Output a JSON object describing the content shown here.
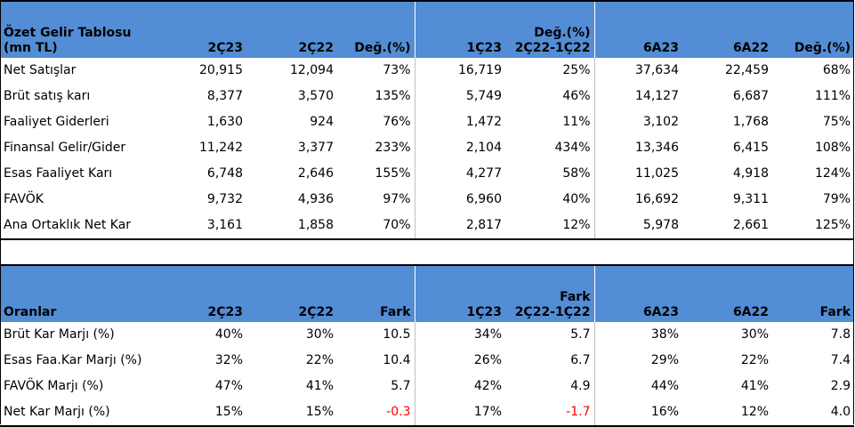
{
  "income": {
    "headers": [
      "Özet Gelir Tablosu\n(mn TL)",
      "2Ç23",
      "2Ç22",
      "Değ.(%)",
      "1Ç23",
      "Değ.(%)\n2Ç22-1Ç22",
      "6A23",
      "6A22",
      "Değ.(%)"
    ],
    "rows": [
      [
        "Net Satışlar",
        "20,915",
        "12,094",
        "73%",
        "16,719",
        "25%",
        "37,634",
        "22,459",
        "68%"
      ],
      [
        "Brüt satış karı",
        "8,377",
        "3,570",
        "135%",
        "5,749",
        "46%",
        "14,127",
        "6,687",
        "111%"
      ],
      [
        "Faaliyet Giderleri",
        "1,630",
        "924",
        "76%",
        "1,472",
        "11%",
        "3,102",
        "1,768",
        "75%"
      ],
      [
        "Finansal Gelir/Gider",
        "11,242",
        "3,377",
        "233%",
        "2,104",
        "434%",
        "13,346",
        "6,415",
        "108%"
      ],
      [
        "Esas Faaliyet Karı",
        "6,748",
        "2,646",
        "155%",
        "4,277",
        "58%",
        "11,025",
        "4,918",
        "124%"
      ],
      [
        "FAVÖK",
        "9,732",
        "4,936",
        "97%",
        "6,960",
        "40%",
        "16,692",
        "9,311",
        "79%"
      ],
      [
        "Ana Ortaklık Net Kar",
        "3,161",
        "1,858",
        "70%",
        "2,817",
        "12%",
        "5,978",
        "2,661",
        "125%"
      ]
    ]
  },
  "ratios": {
    "headers": [
      "Oranlar",
      "2Ç23",
      "2Ç22",
      "Fark",
      "1Ç23",
      "Fark\n2Ç22-1Ç22",
      "6A23",
      "6A22",
      "Fark"
    ],
    "rows": [
      [
        "Brüt Kar Marjı (%)",
        "40%",
        "30%",
        "10.5",
        "34%",
        "5.7",
        "38%",
        "30%",
        "7.8"
      ],
      [
        "Esas Faa.Kar Marjı (%)",
        "32%",
        "22%",
        "10.4",
        "26%",
        "6.7",
        "29%",
        "22%",
        "7.4"
      ],
      [
        "FAVÖK Marjı (%)",
        "47%",
        "41%",
        "5.7",
        "42%",
        "4.9",
        "44%",
        "41%",
        "2.9"
      ],
      [
        "Net Kar Marjı (%)",
        "15%",
        "15%",
        "-0.3",
        "17%",
        "-1.7",
        "16%",
        "12%",
        "4.0"
      ]
    ],
    "negative_color": "#ff0000"
  },
  "colors": {
    "header_bg": "#538DD5",
    "text": "#000000"
  }
}
